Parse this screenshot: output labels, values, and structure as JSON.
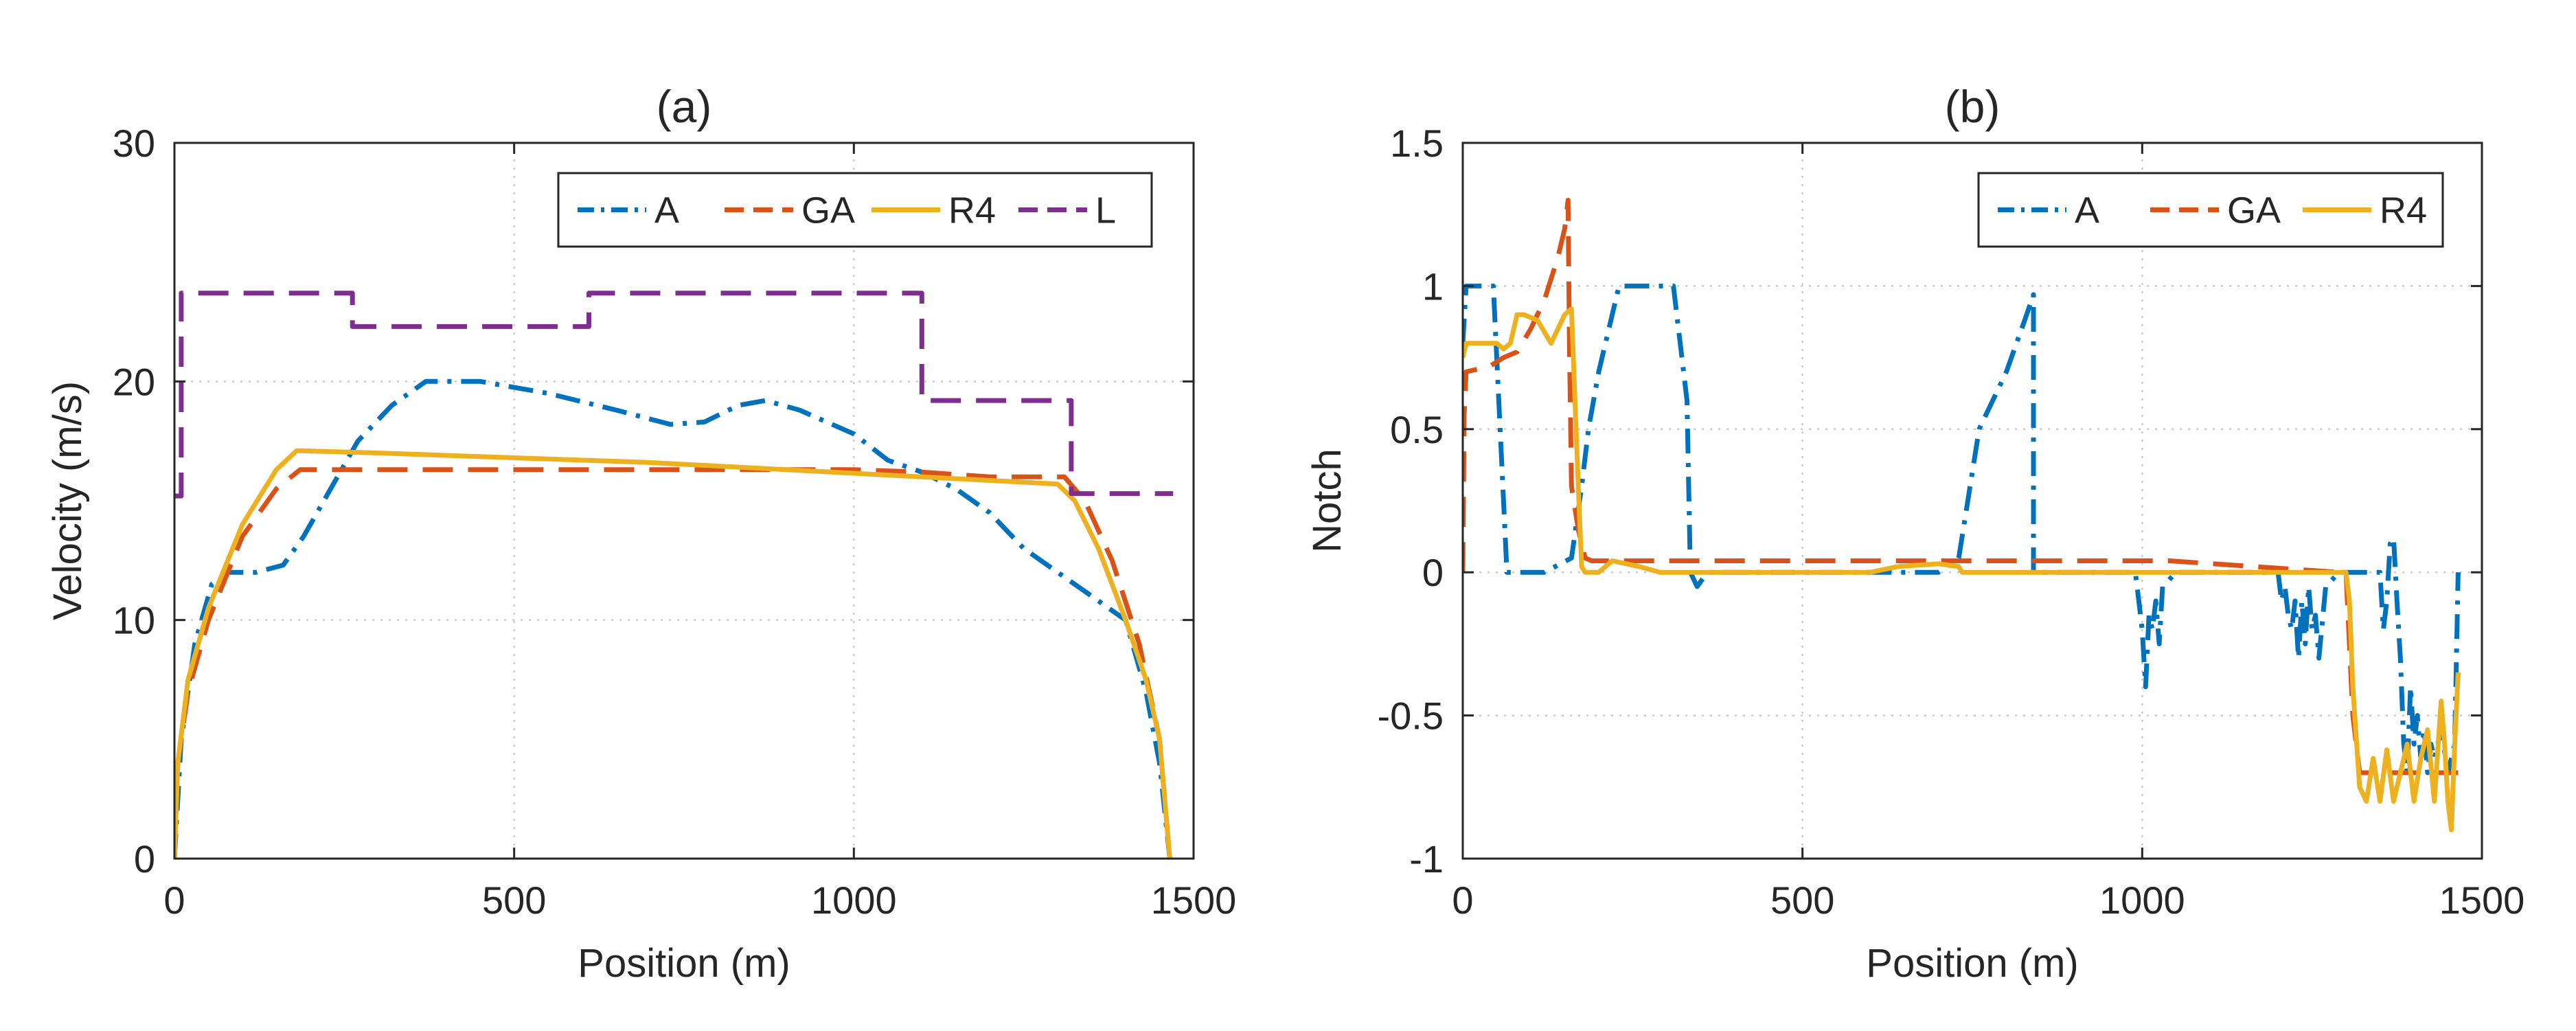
{
  "colors": {
    "A": "#0072BD",
    "GA": "#D95319",
    "R4": "#EDB120",
    "L": "#7E2F8E",
    "axis": "#262626",
    "grid": "#bfbfbf"
  },
  "chart_data": [
    {
      "type": "line",
      "title": "(a)",
      "xlabel": "Position (m)",
      "ylabel": "Velocity (m/s)",
      "xlim": [
        0,
        1500
      ],
      "ylim": [
        0,
        30
      ],
      "xticks": [
        0,
        500,
        1000,
        1500
      ],
      "yticks": [
        0,
        10,
        20,
        30
      ],
      "grid": true,
      "legend_position": "top-right",
      "series": [
        {
          "name": "A",
          "style": "dashdot",
          "color": "#0072BD",
          "x": [
            0,
            10,
            30,
            55,
            80,
            120,
            160,
            190,
            230,
            270,
            320,
            370,
            450,
            550,
            650,
            730,
            780,
            830,
            870,
            920,
            1000,
            1050,
            1100,
            1150,
            1200,
            1250,
            1300,
            1350,
            1400,
            1430,
            1450,
            1465
          ],
          "y": [
            0,
            5,
            9,
            11.5,
            12,
            12,
            12.3,
            13.5,
            15.5,
            17.5,
            19,
            20,
            20,
            19.5,
            18.8,
            18.2,
            18.3,
            19,
            19.2,
            18.8,
            17.8,
            16.7,
            16.2,
            15.5,
            14.5,
            13,
            12,
            11,
            10,
            7,
            4,
            0
          ]
        },
        {
          "name": "GA",
          "style": "dashed",
          "color": "#D95319",
          "x": [
            0,
            5,
            20,
            50,
            100,
            150,
            185,
            500,
            800,
            1000,
            1100,
            1200,
            1310,
            1340,
            1380,
            1420,
            1450,
            1465
          ],
          "y": [
            0,
            4,
            7,
            10,
            13.5,
            15.5,
            16.3,
            16.3,
            16.3,
            16.3,
            16.2,
            16,
            16,
            15,
            12.5,
            9,
            5,
            0
          ]
        },
        {
          "name": "R4",
          "style": "solid",
          "color": "#EDB120",
          "x": [
            0,
            5,
            20,
            50,
            100,
            150,
            180,
            300,
            500,
            700,
            900,
            1100,
            1300,
            1325,
            1360,
            1400,
            1430,
            1450,
            1465
          ],
          "y": [
            0,
            4,
            7.5,
            10.5,
            14,
            16.3,
            17.1,
            17,
            16.8,
            16.6,
            16.3,
            16,
            15.7,
            15,
            13,
            10,
            7.5,
            5,
            0
          ]
        },
        {
          "name": "L",
          "style": "dashed",
          "color": "#7E2F8E",
          "x": [
            0,
            10,
            10,
            262,
            262,
            610,
            610,
            1100,
            1100,
            1320,
            1320,
            1470
          ],
          "y": [
            15.2,
            15.2,
            23.7,
            23.7,
            22.3,
            22.3,
            23.7,
            23.7,
            19.2,
            19.2,
            15.3,
            15.3
          ]
        }
      ]
    },
    {
      "type": "line",
      "title": "(b)",
      "xlabel": "Position (m)",
      "ylabel": "Notch",
      "xlim": [
        0,
        1500
      ],
      "ylim": [
        -1,
        1.5
      ],
      "xticks": [
        0,
        500,
        1000,
        1500
      ],
      "yticks": [
        -1,
        -0.5,
        0,
        0.5,
        1,
        1.5
      ],
      "grid": true,
      "legend_position": "top-right",
      "series": [
        {
          "name": "A",
          "style": "dashdot",
          "color": "#0072BD",
          "x": [
            0,
            5,
            45,
            55,
            65,
            75,
            120,
            160,
            175,
            185,
            200,
            230,
            310,
            320,
            330,
            335,
            345,
            360,
            600,
            700,
            730,
            760,
            800,
            830,
            840,
            840,
            850,
            990,
            995,
            1000,
            1005,
            1010,
            1015,
            1020,
            1025,
            1030,
            1050,
            1200,
            1205,
            1210,
            1215,
            1220,
            1225,
            1230,
            1235,
            1240,
            1245,
            1250,
            1255,
            1260,
            1270,
            1290,
            1300,
            1350,
            1355,
            1360,
            1365,
            1370,
            1375,
            1380,
            1385,
            1390,
            1395,
            1400,
            1405,
            1410,
            1415,
            1420,
            1425,
            1430,
            1440,
            1450,
            1460,
            1465
          ],
          "y": [
            0.8,
            1,
            1,
            0.5,
            0,
            0,
            0,
            0.05,
            0.3,
            0.5,
            0.7,
            1,
            1,
            0.8,
            0.6,
            0,
            -0.05,
            0,
            0,
            0,
            0.05,
            0.5,
            0.7,
            0.9,
            0.97,
            0,
            0,
            0,
            -0.1,
            -0.2,
            -0.4,
            -0.15,
            -0.2,
            -0.1,
            -0.25,
            -0.05,
            0,
            0,
            -0.1,
            -0.05,
            -0.15,
            -0.2,
            -0.1,
            -0.3,
            -0.1,
            -0.25,
            -0.05,
            -0.2,
            -0.15,
            -0.3,
            -0.05,
            0,
            0,
            0,
            -0.2,
            -0.1,
            0.1,
            0.12,
            -0.1,
            -0.3,
            -0.6,
            -0.7,
            -0.4,
            -0.6,
            -0.5,
            -0.65,
            -0.55,
            -0.7,
            -0.6,
            -0.65,
            -0.55,
            -0.7,
            -0.6,
            0
          ]
        },
        {
          "name": "GA",
          "style": "dashed",
          "color": "#D95319",
          "x": [
            0,
            2,
            5,
            40,
            60,
            80,
            100,
            120,
            140,
            150,
            155,
            157,
            160,
            170,
            175,
            180,
            190,
            1040,
            1290,
            1300,
            1310,
            1320,
            1360,
            1400,
            1440,
            1465
          ],
          "y": [
            0,
            0.55,
            0.7,
            0.72,
            0.75,
            0.77,
            0.85,
            0.95,
            1.1,
            1.2,
            1.3,
            0.8,
            0.3,
            0.15,
            0.1,
            0.05,
            0.04,
            0.04,
            0,
            0,
            -0.5,
            -0.7,
            -0.7,
            -0.7,
            -0.7,
            -0.7
          ]
        },
        {
          "name": "R4",
          "style": "solid",
          "color": "#EDB120",
          "x": [
            0,
            5,
            50,
            60,
            70,
            80,
            90,
            110,
            130,
            140,
            150,
            160,
            170,
            175,
            180,
            200,
            220,
            240,
            260,
            290,
            320,
            360,
            600,
            640,
            700,
            730,
            735,
            800,
            1000,
            1200,
            1290,
            1300,
            1305,
            1310,
            1320,
            1330,
            1340,
            1350,
            1360,
            1370,
            1380,
            1390,
            1400,
            1410,
            1420,
            1430,
            1440,
            1445,
            1450,
            1455,
            1460,
            1465
          ],
          "y": [
            0.75,
            0.8,
            0.8,
            0.78,
            0.8,
            0.9,
            0.9,
            0.88,
            0.8,
            0.85,
            0.9,
            0.92,
            0.3,
            0.02,
            0,
            0,
            0.04,
            0.03,
            0.02,
            0,
            0,
            0,
            0,
            0.02,
            0.03,
            0.02,
            0,
            0,
            0,
            0,
            0,
            0,
            -0.1,
            -0.4,
            -0.75,
            -0.8,
            -0.65,
            -0.8,
            -0.62,
            -0.8,
            -0.7,
            -0.6,
            -0.8,
            -0.65,
            -0.55,
            -0.8,
            -0.45,
            -0.6,
            -0.8,
            -0.9,
            -0.6,
            -0.35
          ]
        }
      ]
    }
  ]
}
